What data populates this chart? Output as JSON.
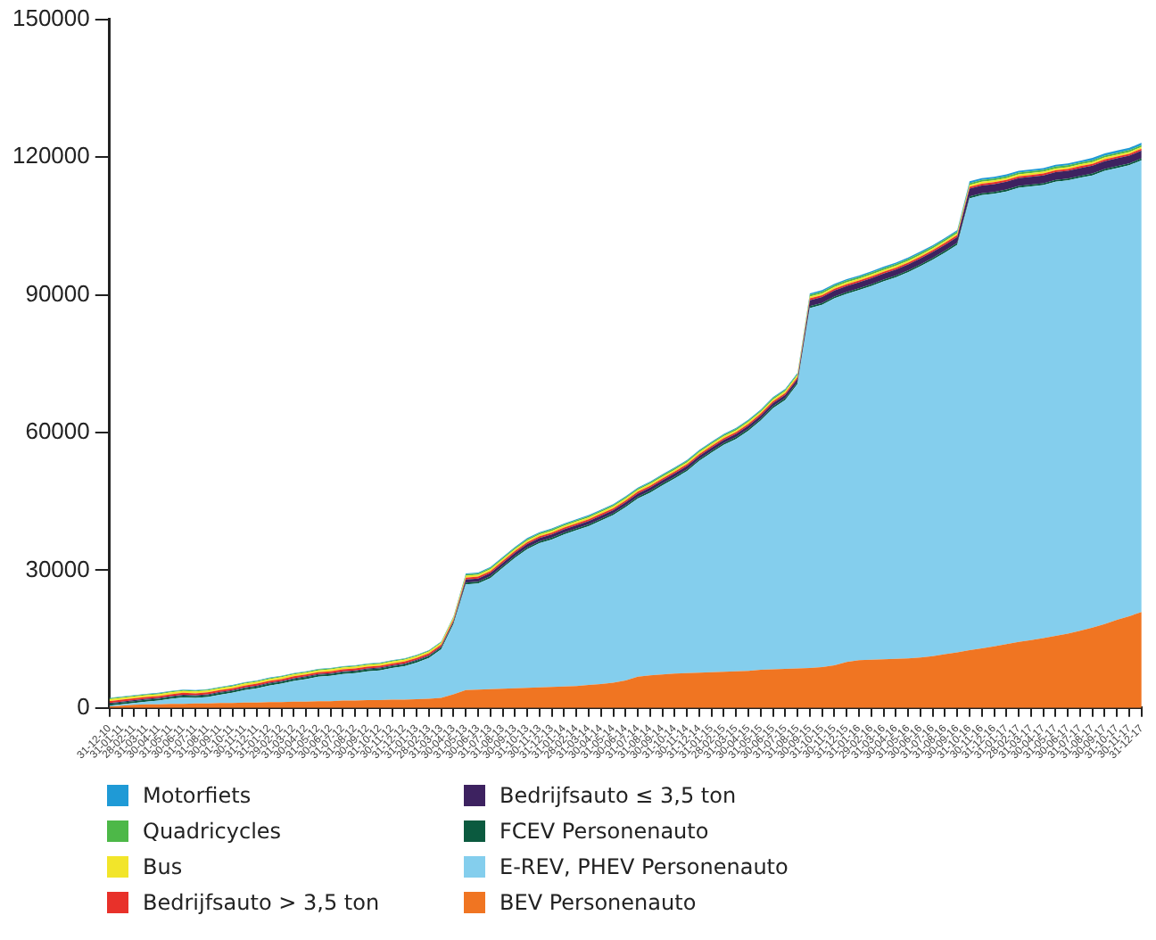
{
  "chart_data": {
    "type": "area",
    "stacked": true,
    "legend": "bottom",
    "grid": false,
    "marker": "none",
    "categories": [
      "31-12-10",
      "31-01-11",
      "28-02-11",
      "31-03-11",
      "30-04-11",
      "31-05-11",
      "30-06-11",
      "31-07-11",
      "31-08-11",
      "30-09-11",
      "31-10-11",
      "30-11-11",
      "31-12-11",
      "31-01-12",
      "29-02-12",
      "31-03-12",
      "30-04-12",
      "31-05-12",
      "30-06-12",
      "31-07-12",
      "31-08-12",
      "30-09-12",
      "31-10-12",
      "30-11-12",
      "31-12-12",
      "31-01-13",
      "28-02-13",
      "31-03-13",
      "30-04-13",
      "31-05-13",
      "30-06-13",
      "31-07-13",
      "31-08-13",
      "30-09-13",
      "31-10-13",
      "30-11-13",
      "31-12-13",
      "31-01-14",
      "28-02-14",
      "31-03-14",
      "30-04-14",
      "31-05-14",
      "30-06-14",
      "31-07-14",
      "31-08-14",
      "30-09-14",
      "31-10-14",
      "30-11-14",
      "31-12-14",
      "31-01-15",
      "28-02-15",
      "31-03-15",
      "30-04-15",
      "31-05-15",
      "30-06-15",
      "31-07-15",
      "31-08-15",
      "30-09-15",
      "31-10-15",
      "30-11-15",
      "31-12-15",
      "31-01-16",
      "29-02-16",
      "31-03-16",
      "30-04-16",
      "31-05-16",
      "30-06-16",
      "31-07-16",
      "31-08-16",
      "30-09-16",
      "31-10-16",
      "30-11-16",
      "31-12-16",
      "31-01-17",
      "28-02-17",
      "31-03-17",
      "30-04-17",
      "31-05-17",
      "30-06-17",
      "31-07-17",
      "31-08-17",
      "30-09-17",
      "31-10-17",
      "30-11-17",
      "31-12-17"
    ],
    "ylim": [
      0,
      150000
    ],
    "yticks": [
      0,
      30000,
      60000,
      90000,
      120000,
      150000
    ],
    "series": [
      {
        "name": "BEV Personenauto",
        "color": "#f07522",
        "values": [
          300,
          500,
          700,
          800,
          800,
          900,
          900,
          1000,
          1000,
          1100,
          1100,
          1200,
          1200,
          1300,
          1300,
          1400,
          1400,
          1500,
          1500,
          1600,
          1600,
          1700,
          1700,
          1800,
          1800,
          1900,
          2000,
          2200,
          3000,
          3900,
          4000,
          4100,
          4200,
          4300,
          4400,
          4500,
          4600,
          4700,
          4800,
          5000,
          5200,
          5500,
          6000,
          6800,
          7100,
          7300,
          7500,
          7600,
          7700,
          7800,
          7900,
          8000,
          8100,
          8300,
          8400,
          8500,
          8600,
          8700,
          8900,
          9300,
          10000,
          10400,
          10500,
          10600,
          10700,
          10800,
          11000,
          11300,
          11700,
          12100,
          12600,
          13000,
          13400,
          13900,
          14400,
          14800,
          15200,
          15700,
          16200,
          16800,
          17500,
          18300,
          19200,
          20000,
          20900
        ]
      },
      {
        "name": "E-REV, PHEV Personenauto",
        "color": "#84ceed",
        "values": [
          200,
          300,
          400,
          600,
          800,
          1100,
          1400,
          1200,
          1400,
          1800,
          2200,
          2700,
          3100,
          3600,
          4000,
          4500,
          4900,
          5300,
          5500,
          5800,
          6000,
          6300,
          6500,
          6900,
          7300,
          8000,
          8900,
          10600,
          15300,
          23000,
          23100,
          24200,
          26300,
          28400,
          30200,
          31400,
          32100,
          33100,
          33900,
          34600,
          35600,
          36500,
          37700,
          38800,
          39800,
          41200,
          42500,
          44000,
          46100,
          47800,
          49400,
          50600,
          52300,
          54300,
          56900,
          58600,
          62000,
          78400,
          78900,
          79900,
          80200,
          80600,
          81400,
          82300,
          83100,
          84100,
          85200,
          86300,
          87500,
          88800,
          98400,
          98700,
          98600,
          98600,
          98900,
          98800,
          98700,
          98900,
          98700,
          98700,
          98500,
          98700,
          98400,
          98200,
          98400
        ]
      },
      {
        "name": "FCEV Personenauto",
        "color": "#0b5a3f",
        "values": [
          400,
          400,
          400,
          400,
          400,
          400,
          400,
          400,
          400,
          400,
          400,
          400,
          400,
          400,
          400,
          400,
          400,
          400,
          400,
          400,
          400,
          400,
          400,
          400,
          400,
          400,
          400,
          400,
          400,
          400,
          400,
          400,
          400,
          400,
          400,
          400,
          400,
          400,
          400,
          400,
          400,
          400,
          400,
          400,
          400,
          400,
          400,
          400,
          400,
          400,
          400,
          400,
          400,
          400,
          400,
          400,
          400,
          400,
          400,
          400,
          400,
          400,
          400,
          400,
          400,
          400,
          400,
          400,
          400,
          400,
          400,
          400,
          400,
          400,
          400,
          400,
          400,
          400,
          400,
          400,
          400,
          400,
          400,
          400,
          400
        ]
      },
      {
        "name": "Bedrijfsauto ≤ 3,5 ton",
        "color": "#3d2260",
        "values": [
          200,
          200,
          200,
          200,
          200,
          200,
          200,
          200,
          200,
          200,
          200,
          200,
          200,
          200,
          200,
          200,
          200,
          200,
          200,
          200,
          200,
          200,
          200,
          200,
          200,
          200,
          200,
          200,
          200,
          700,
          700,
          700,
          700,
          700,
          700,
          700,
          700,
          700,
          700,
          700,
          700,
          700,
          700,
          700,
          700,
          700,
          700,
          700,
          700,
          700,
          700,
          700,
          700,
          700,
          700,
          700,
          700,
          1300,
          1300,
          1300,
          1300,
          1300,
          1300,
          1300,
          1300,
          1300,
          1300,
          1300,
          1300,
          1300,
          1700,
          1700,
          1700,
          1700,
          1700,
          1700,
          1700,
          1700,
          1700,
          1700,
          1700,
          1700,
          1700,
          1700,
          1700
        ]
      },
      {
        "name": "Bedrijfsauto > 3,5 ton",
        "color": "#e8312a",
        "values": [
          400,
          400,
          400,
          400,
          400,
          400,
          400,
          400,
          400,
          400,
          400,
          400,
          400,
          400,
          400,
          400,
          400,
          400,
          400,
          400,
          400,
          400,
          400,
          400,
          400,
          400,
          400,
          400,
          400,
          400,
          400,
          400,
          400,
          400,
          400,
          400,
          400,
          400,
          400,
          400,
          400,
          400,
          400,
          400,
          400,
          400,
          400,
          400,
          400,
          400,
          400,
          400,
          400,
          400,
          400,
          400,
          400,
          400,
          400,
          400,
          400,
          400,
          400,
          400,
          400,
          400,
          400,
          400,
          400,
          400,
          400,
          400,
          400,
          400,
          400,
          400,
          400,
          400,
          400,
          400,
          400,
          400,
          400,
          400,
          400
        ]
      },
      {
        "name": "Bus",
        "color": "#f2e52a",
        "values": [
          400,
          400,
          400,
          400,
          400,
          400,
          400,
          400,
          400,
          400,
          400,
          400,
          400,
          400,
          400,
          400,
          400,
          400,
          400,
          400,
          400,
          400,
          400,
          400,
          400,
          400,
          400,
          400,
          400,
          400,
          400,
          400,
          400,
          400,
          400,
          400,
          400,
          400,
          400,
          400,
          400,
          400,
          400,
          400,
          400,
          400,
          400,
          400,
          400,
          400,
          400,
          400,
          400,
          400,
          400,
          400,
          400,
          400,
          400,
          400,
          400,
          400,
          400,
          400,
          400,
          400,
          400,
          400,
          400,
          400,
          400,
          400,
          400,
          400,
          400,
          400,
          400,
          400,
          400,
          400,
          400,
          400,
          400,
          400,
          400
        ]
      },
      {
        "name": "Quadricycles",
        "color": "#4db848",
        "values": [
          200,
          200,
          200,
          200,
          200,
          200,
          200,
          200,
          200,
          200,
          200,
          200,
          200,
          200,
          200,
          200,
          200,
          200,
          200,
          200,
          200,
          200,
          200,
          200,
          200,
          200,
          200,
          200,
          200,
          300,
          300,
          300,
          300,
          300,
          300,
          300,
          300,
          300,
          300,
          300,
          300,
          300,
          300,
          300,
          300,
          300,
          300,
          300,
          300,
          300,
          300,
          300,
          300,
          300,
          300,
          300,
          300,
          400,
          400,
          400,
          400,
          400,
          400,
          400,
          400,
          400,
          400,
          400,
          400,
          400,
          400,
          400,
          400,
          400,
          400,
          400,
          400,
          400,
          400,
          400,
          400,
          400,
          400,
          400,
          400
        ]
      },
      {
        "name": "Motorfiets",
        "color": "#1f9ad6",
        "values": [
          100,
          100,
          100,
          100,
          100,
          100,
          100,
          100,
          100,
          100,
          100,
          100,
          100,
          100,
          100,
          100,
          100,
          100,
          100,
          100,
          100,
          100,
          100,
          100,
          100,
          100,
          100,
          100,
          100,
          200,
          200,
          200,
          200,
          200,
          200,
          200,
          200,
          200,
          200,
          200,
          200,
          200,
          200,
          200,
          200,
          200,
          200,
          200,
          200,
          200,
          200,
          200,
          200,
          200,
          200,
          200,
          200,
          300,
          300,
          300,
          300,
          300,
          300,
          300,
          300,
          300,
          300,
          300,
          300,
          300,
          400,
          400,
          400,
          400,
          400,
          400,
          400,
          400,
          400,
          400,
          500,
          500,
          500,
          500,
          500
        ]
      }
    ]
  }
}
